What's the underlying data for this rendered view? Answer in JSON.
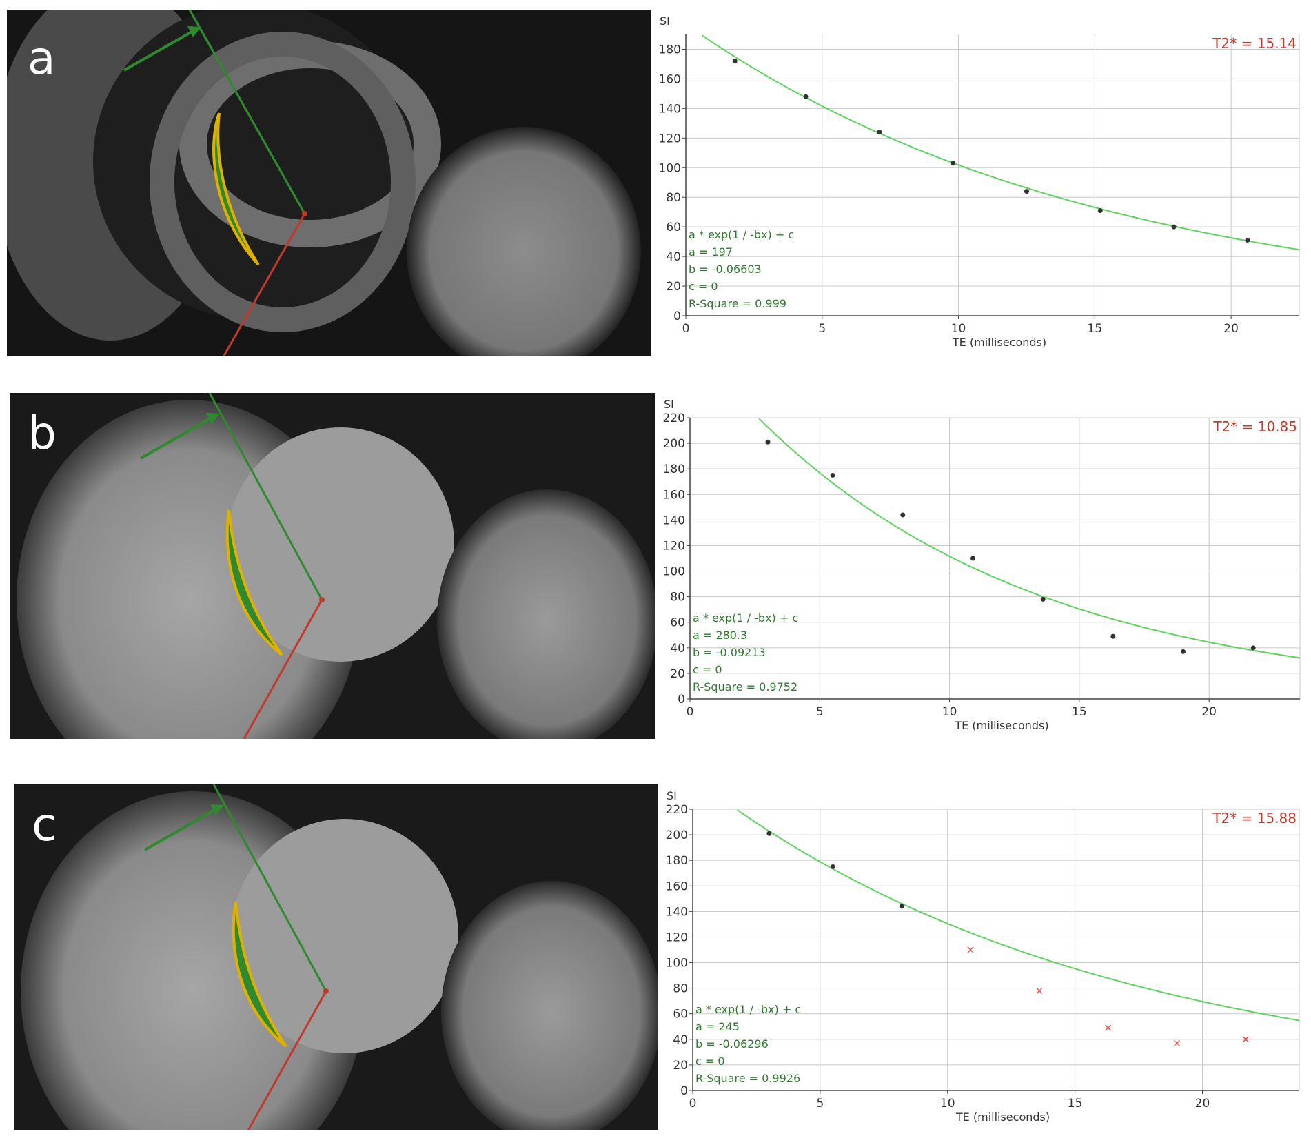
{
  "panels": [
    {
      "letter": "a"
    },
    {
      "letter": "b"
    },
    {
      "letter": "c"
    }
  ],
  "colors": {
    "fit_curve": "#5fd35f",
    "point_included": "#333333",
    "point_excluded": "#e0584b",
    "t2_label": "#c0392b",
    "fit_text": "#2e7d2e",
    "grid": "#c8c8c8",
    "contour_outline": "#e0b000",
    "contour_fill": "#2f8a2f",
    "arrow": "#2f8a2f",
    "red_line": "#c0392b"
  },
  "chart_data": [
    {
      "type": "scatter",
      "ylabel": "SI",
      "xlabel": "TE (milliseconds)",
      "xlim": [
        0,
        22.5
      ],
      "ylim": [
        0,
        190
      ],
      "xticks": [
        0,
        5,
        10,
        15,
        20
      ],
      "yticks": [
        0,
        20,
        40,
        60,
        80,
        100,
        120,
        140,
        160,
        180
      ],
      "grid": true,
      "t2_label": "T2* = 15.14",
      "fit": {
        "equation": "a * exp(1 / -bx) + c",
        "a_text": "a = 197",
        "b_text": "b = -0.06603",
        "c_text": "c = 0",
        "r2_text": "R-Square = 0.999",
        "a": 197,
        "b": -0.06603,
        "c": 0
      },
      "points": [
        {
          "x": 1.8,
          "y": 172,
          "included": true
        },
        {
          "x": 4.4,
          "y": 148,
          "included": true
        },
        {
          "x": 7.1,
          "y": 124,
          "included": true
        },
        {
          "x": 9.8,
          "y": 103,
          "included": true
        },
        {
          "x": 12.5,
          "y": 84,
          "included": true
        },
        {
          "x": 15.2,
          "y": 71,
          "included": true
        },
        {
          "x": 17.9,
          "y": 60,
          "included": true
        },
        {
          "x": 20.6,
          "y": 51,
          "included": true
        }
      ]
    },
    {
      "type": "scatter",
      "ylabel": "SI",
      "xlabel": "TE (milliseconds)",
      "xlim": [
        0,
        23.5
      ],
      "ylim": [
        0,
        220
      ],
      "xticks": [
        0,
        5,
        10,
        15,
        20
      ],
      "yticks": [
        0,
        20,
        40,
        60,
        80,
        100,
        120,
        140,
        160,
        180,
        200,
        220
      ],
      "grid": true,
      "t2_label": "T2* = 10.85",
      "fit": {
        "equation": "a * exp(1 / -bx) + c",
        "a_text": "a = 280.3",
        "b_text": "b = -0.09213",
        "c_text": "c = 0",
        "r2_text": "R-Square = 0.9752",
        "a": 280.3,
        "b": -0.09213,
        "c": 0
      },
      "points": [
        {
          "x": 3.0,
          "y": 201,
          "included": true
        },
        {
          "x": 5.5,
          "y": 175,
          "included": true
        },
        {
          "x": 8.2,
          "y": 144,
          "included": true
        },
        {
          "x": 10.9,
          "y": 110,
          "included": true
        },
        {
          "x": 13.6,
          "y": 78,
          "included": true
        },
        {
          "x": 16.3,
          "y": 49,
          "included": true
        },
        {
          "x": 19.0,
          "y": 37,
          "included": true
        },
        {
          "x": 21.7,
          "y": 40,
          "included": true
        }
      ]
    },
    {
      "type": "scatter",
      "ylabel": "SI",
      "xlabel": "TE (milliseconds)",
      "xlim": [
        0,
        23.8
      ],
      "ylim": [
        0,
        220
      ],
      "xticks": [
        0,
        5,
        10,
        15,
        20
      ],
      "yticks": [
        0,
        20,
        40,
        60,
        80,
        100,
        120,
        140,
        160,
        180,
        200,
        220
      ],
      "grid": true,
      "t2_label": "T2* = 15.88",
      "fit": {
        "equation": "a * exp(1 / -bx) + c",
        "a_text": "a = 245",
        "b_text": "b = -0.06296",
        "c_text": "c = 0",
        "r2_text": "R-Square = 0.9926",
        "a": 245,
        "b": -0.06296,
        "c": 0
      },
      "points": [
        {
          "x": 3.0,
          "y": 201,
          "included": true
        },
        {
          "x": 5.5,
          "y": 175,
          "included": true
        },
        {
          "x": 8.2,
          "y": 144,
          "included": true
        },
        {
          "x": 10.9,
          "y": 110,
          "included": false
        },
        {
          "x": 13.6,
          "y": 78,
          "included": false
        },
        {
          "x": 16.3,
          "y": 49,
          "included": false
        },
        {
          "x": 19.0,
          "y": 37,
          "included": false
        },
        {
          "x": 21.7,
          "y": 40,
          "included": false
        }
      ]
    }
  ]
}
